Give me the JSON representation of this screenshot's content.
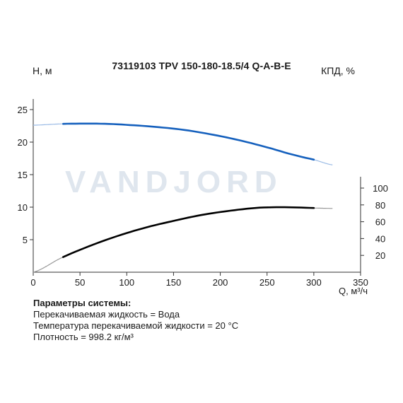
{
  "chart_data": {
    "type": "line",
    "title": "73119103 TPV 150-180-18.5/4 Q-A-B-E",
    "xlabel": "Q, м³/ч",
    "ylabel_left": "H, м",
    "ylabel_right": "КПД, %",
    "watermark": "VANDJORD",
    "xlim": [
      0,
      350
    ],
    "ylim_left": [
      0,
      27.5
    ],
    "ylim_right": [
      0,
      120
    ],
    "x_ticks": [
      0,
      50,
      100,
      150,
      200,
      250,
      300,
      350
    ],
    "y_ticks_left": [
      5,
      10,
      15,
      20,
      25
    ],
    "y_ticks_right": [
      20,
      40,
      60,
      80,
      100
    ],
    "grid": false,
    "series": [
      {
        "axis": "left",
        "color": "#1560bd",
        "extension_color": "#9cbce6",
        "x": [
          0,
          30,
          60,
          80,
          100,
          130,
          160,
          190,
          220,
          250,
          280,
          300,
          320
        ],
        "y": [
          22.6,
          22.8,
          22.85,
          22.8,
          22.65,
          22.35,
          21.9,
          21.2,
          20.3,
          19.2,
          18.0,
          17.3,
          16.5
        ],
        "operating_range": [
          32,
          300
        ]
      },
      {
        "axis": "right",
        "color": "#000000",
        "extension_color": "#999999",
        "x": [
          0,
          30,
          60,
          90,
          120,
          150,
          180,
          210,
          240,
          260,
          280,
          300,
          320
        ],
        "y": [
          0,
          17,
          31,
          43,
          53,
          61,
          68,
          73,
          76.5,
          77.2,
          77,
          76.3,
          75.8
        ],
        "operating_range": [
          32,
          300
        ]
      }
    ]
  },
  "params": {
    "heading": "Параметры системы:",
    "lines": [
      "Перекачиваемая жидкость = Вода",
      "Температура перекачиваемой жидкости = 20 °C",
      "Плотность = 998.2 кг/м³"
    ]
  }
}
